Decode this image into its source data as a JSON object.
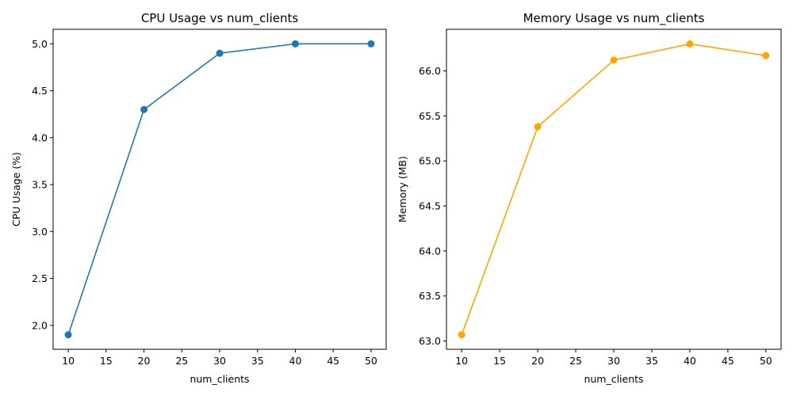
{
  "chart_data": [
    {
      "type": "line",
      "title": "CPU Usage vs num_clients",
      "xlabel": "num_clients",
      "ylabel": "CPU Usage (%)",
      "x": [
        10,
        20,
        30,
        40,
        50
      ],
      "series": [
        {
          "values": [
            1.9,
            4.3,
            4.9,
            5.0,
            5.0
          ],
          "color": "#1f77b4",
          "marker": "circle"
        }
      ],
      "xlim": [
        8,
        52
      ],
      "ylim": [
        1.745,
        5.155
      ],
      "xticks": [
        10,
        15,
        20,
        25,
        30,
        35,
        40,
        45,
        50
      ],
      "xtick_labels": [
        "10",
        "15",
        "20",
        "25",
        "30",
        "35",
        "40",
        "45",
        "50"
      ],
      "yticks": [
        2.0,
        2.5,
        3.0,
        3.5,
        4.0,
        4.5,
        5.0
      ],
      "ytick_labels": [
        "2.0",
        "2.5",
        "3.0",
        "3.5",
        "4.0",
        "4.5",
        "5.0"
      ],
      "grid": false,
      "legend": "none"
    },
    {
      "type": "line",
      "title": "Memory Usage vs num_clients",
      "xlabel": "num_clients",
      "ylabel": "Memory (MB)",
      "x": [
        10,
        20,
        30,
        40,
        50
      ],
      "series": [
        {
          "values": [
            63.07,
            65.38,
            66.12,
            66.3,
            66.17
          ],
          "color": "#ffa500",
          "marker": "circle"
        }
      ],
      "xlim": [
        8,
        52
      ],
      "ylim": [
        62.908,
        66.462
      ],
      "xticks": [
        10,
        15,
        20,
        25,
        30,
        35,
        40,
        45,
        50
      ],
      "xtick_labels": [
        "10",
        "15",
        "20",
        "25",
        "30",
        "35",
        "40",
        "45",
        "50"
      ],
      "yticks": [
        63.0,
        63.5,
        64.0,
        64.5,
        65.0,
        65.5,
        66.0
      ],
      "ytick_labels": [
        "63.0",
        "63.5",
        "64.0",
        "64.5",
        "65.0",
        "65.5",
        "66.0"
      ],
      "grid": false,
      "legend": "none"
    }
  ]
}
